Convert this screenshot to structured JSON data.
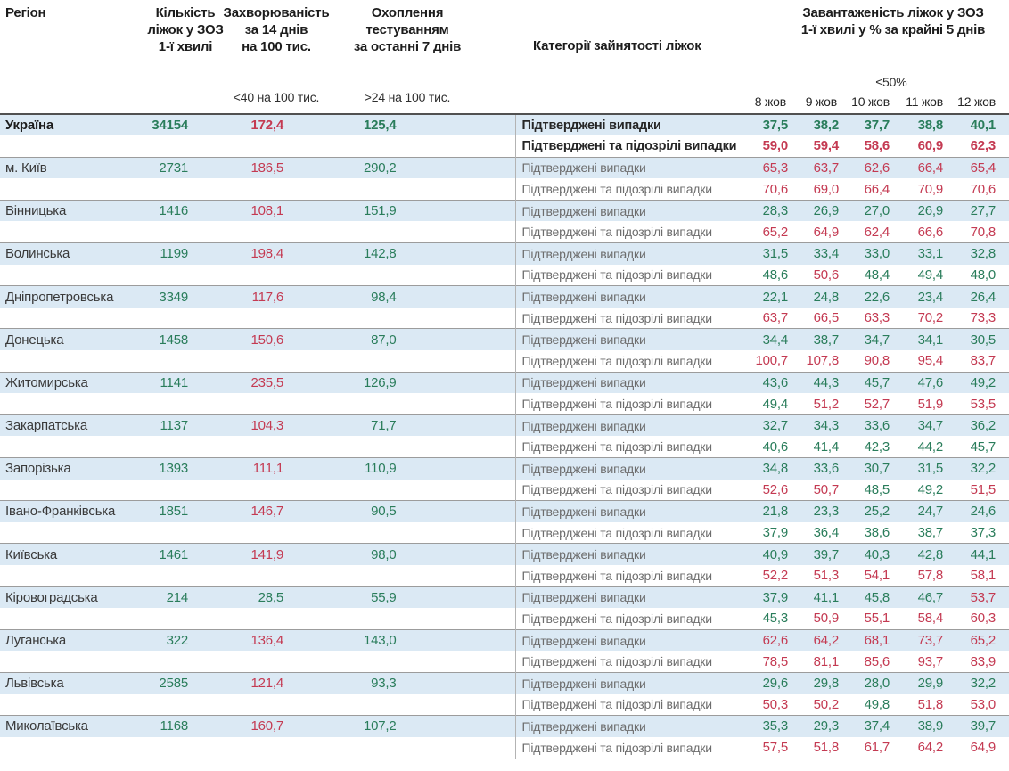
{
  "header": {
    "region": "Регіон",
    "beds": "Кількість\nліжок у ЗОЗ\n1-ї хвилі",
    "incidence": "Захворюваність\nза 14 днів\nна 100 тис.",
    "testing": "Охоплення\nтестуванням\nза останні 7 днів",
    "categories": "Категорії зайнятості ліжок",
    "load": "Завантаженість ліжок у ЗОЗ\n1-ї хвилі у % за крайні 5 днів",
    "occupancy_threshold": "≤50%",
    "incidence_threshold": "<40 на 100 тис.",
    "testing_threshold": ">24 на 100 тис.",
    "dates": [
      "8 жов",
      "9 жов",
      "10 жов",
      "11 жов",
      "12 жов"
    ]
  },
  "categories": {
    "confirmed": "Підтверджені випадки",
    "suspected": "Підтверджені та підозрілі випадки"
  },
  "thresholds": {
    "occupancy_pct": 50,
    "incidence_per_100k": 40,
    "testing_per_100k": 24
  },
  "colors": {
    "good": "#2a7d5b",
    "bad": "#c43a52",
    "band": "#dbe9f4"
  },
  "table": {
    "rows": [
      {
        "region": "Україна",
        "bold": true,
        "beds": "34154",
        "incidence": "172,4",
        "testing": "125,4",
        "confirmed": [
          "37,5",
          "38,2",
          "37,7",
          "38,8",
          "40,1"
        ],
        "suspected": [
          "59,0",
          "59,4",
          "58,6",
          "60,9",
          "62,3"
        ]
      },
      {
        "region": "м. Київ",
        "beds": "2731",
        "incidence": "186,5",
        "testing": "290,2",
        "confirmed": [
          "65,3",
          "63,7",
          "62,6",
          "66,4",
          "65,4"
        ],
        "suspected": [
          "70,6",
          "69,0",
          "66,4",
          "70,9",
          "70,6"
        ]
      },
      {
        "region": "Вінницька",
        "beds": "1416",
        "incidence": "108,1",
        "testing": "151,9",
        "confirmed": [
          "28,3",
          "26,9",
          "27,0",
          "26,9",
          "27,7"
        ],
        "suspected": [
          "65,2",
          "64,9",
          "62,4",
          "66,6",
          "70,8"
        ]
      },
      {
        "region": "Волинська",
        "beds": "1199",
        "incidence": "198,4",
        "testing": "142,8",
        "confirmed": [
          "31,5",
          "33,4",
          "33,0",
          "33,1",
          "32,8"
        ],
        "suspected": [
          "48,6",
          "50,6",
          "48,4",
          "49,4",
          "48,0"
        ]
      },
      {
        "region": "Дніпропетровська",
        "beds": "3349",
        "incidence": "117,6",
        "testing": "98,4",
        "confirmed": [
          "22,1",
          "24,8",
          "22,6",
          "23,4",
          "26,4"
        ],
        "suspected": [
          "63,7",
          "66,5",
          "63,3",
          "70,2",
          "73,3"
        ]
      },
      {
        "region": "Донецька",
        "beds": "1458",
        "incidence": "150,6",
        "testing": "87,0",
        "confirmed": [
          "34,4",
          "38,7",
          "34,7",
          "34,1",
          "30,5"
        ],
        "suspected": [
          "100,7",
          "107,8",
          "90,8",
          "95,4",
          "83,7"
        ]
      },
      {
        "region": "Житомирська",
        "beds": "1141",
        "incidence": "235,5",
        "testing": "126,9",
        "confirmed": [
          "43,6",
          "44,3",
          "45,7",
          "47,6",
          "49,2"
        ],
        "suspected": [
          "49,4",
          "51,2",
          "52,7",
          "51,9",
          "53,5"
        ]
      },
      {
        "region": "Закарпатська",
        "beds": "1137",
        "incidence": "104,3",
        "testing": "71,7",
        "confirmed": [
          "32,7",
          "34,3",
          "33,6",
          "34,7",
          "36,2"
        ],
        "suspected": [
          "40,6",
          "41,4",
          "42,3",
          "44,2",
          "45,7"
        ]
      },
      {
        "region": "Запорізька",
        "beds": "1393",
        "incidence": "111,1",
        "testing": "110,9",
        "confirmed": [
          "34,8",
          "33,6",
          "30,7",
          "31,5",
          "32,2"
        ],
        "suspected": [
          "52,6",
          "50,7",
          "48,5",
          "49,2",
          "51,5"
        ]
      },
      {
        "region": "Івано-Франківська",
        "beds": "1851",
        "incidence": "146,7",
        "testing": "90,5",
        "confirmed": [
          "21,8",
          "23,3",
          "25,2",
          "24,7",
          "24,6"
        ],
        "suspected": [
          "37,9",
          "36,4",
          "38,6",
          "38,7",
          "37,3"
        ]
      },
      {
        "region": "Київська",
        "beds": "1461",
        "incidence": "141,9",
        "testing": "98,0",
        "confirmed": [
          "40,9",
          "39,7",
          "40,3",
          "42,8",
          "44,1"
        ],
        "suspected": [
          "52,2",
          "51,3",
          "54,1",
          "57,8",
          "58,1"
        ]
      },
      {
        "region": "Кіровоградська",
        "beds": "214",
        "incidence": "28,5",
        "testing": "55,9",
        "confirmed": [
          "37,9",
          "41,1",
          "45,8",
          "46,7",
          "53,7"
        ],
        "suspected": [
          "45,3",
          "50,9",
          "55,1",
          "58,4",
          "60,3"
        ]
      },
      {
        "region": "Луганська",
        "beds": "322",
        "incidence": "136,4",
        "testing": "143,0",
        "confirmed": [
          "62,6",
          "64,2",
          "68,1",
          "73,7",
          "65,2"
        ],
        "suspected": [
          "78,5",
          "81,1",
          "85,6",
          "93,7",
          "83,9"
        ]
      },
      {
        "region": "Львівська",
        "beds": "2585",
        "incidence": "121,4",
        "testing": "93,3",
        "confirmed": [
          "29,6",
          "29,8",
          "28,0",
          "29,9",
          "32,2"
        ],
        "suspected": [
          "50,3",
          "50,2",
          "49,8",
          "51,8",
          "53,0"
        ]
      },
      {
        "region": "Миколаївська",
        "beds": "1168",
        "incidence": "160,7",
        "testing": "107,2",
        "confirmed": [
          "35,3",
          "29,3",
          "37,4",
          "38,9",
          "39,7"
        ],
        "suspected": [
          "57,5",
          "51,8",
          "61,7",
          "64,2",
          "64,9"
        ]
      }
    ]
  }
}
